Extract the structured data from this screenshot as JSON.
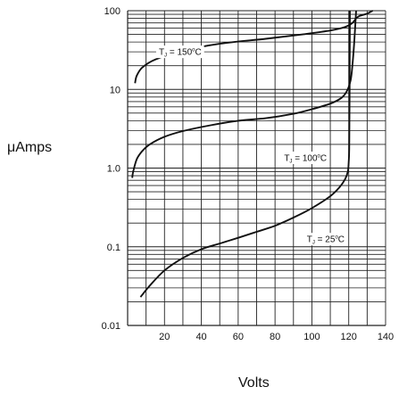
{
  "chart_data": {
    "type": "line",
    "title": "",
    "xlabel": "Volts",
    "ylabel": "μAmps",
    "xlim": [
      0,
      140
    ],
    "ylim": [
      0.01,
      100
    ],
    "y_scale": "log",
    "grid": true,
    "x_ticks": [
      "20",
      "40",
      "60",
      "80",
      "100",
      "120",
      "140"
    ],
    "y_ticks": [
      "0.01",
      "0.1",
      "1.0",
      "10",
      "100"
    ],
    "y_tick_values": [
      0.01,
      0.1,
      1,
      10,
      100
    ],
    "series": [
      {
        "name": "TJ = 150°C",
        "label": {
          "prefix": "T",
          "sub": "J",
          "rest": " = 150",
          "sup": "o",
          "unit": "C",
          "at_x": 28.5,
          "at_y": 30
        },
        "points": [
          [
            4,
            12
          ],
          [
            5,
            15
          ],
          [
            8,
            19
          ],
          [
            15,
            24
          ],
          [
            30,
            31
          ],
          [
            50,
            38
          ],
          [
            75,
            44
          ],
          [
            95,
            50
          ],
          [
            110,
            56
          ],
          [
            118,
            62
          ],
          [
            122,
            70
          ],
          [
            124,
            80
          ],
          [
            126,
            86
          ],
          [
            130,
            92
          ],
          [
            133,
            100
          ]
        ]
      },
      {
        "name": "TJ = 100°C",
        "label": {
          "prefix": "T",
          "sub": "J",
          "rest": " = 100",
          "sup": "o",
          "unit": "C",
          "at_x": 96.5,
          "at_y": 1.35
        },
        "points": [
          [
            2.5,
            0.75
          ],
          [
            3,
            0.9
          ],
          [
            5,
            1.3
          ],
          [
            8,
            1.65
          ],
          [
            12,
            2.0
          ],
          [
            20,
            2.5
          ],
          [
            30,
            2.95
          ],
          [
            45,
            3.5
          ],
          [
            60,
            4.0
          ],
          [
            75,
            4.3
          ],
          [
            90,
            4.9
          ],
          [
            100,
            5.6
          ],
          [
            110,
            6.6
          ],
          [
            116,
            7.8
          ],
          [
            119,
            9.5
          ],
          [
            121,
            13
          ],
          [
            122,
            20
          ],
          [
            123,
            40
          ],
          [
            124,
            100
          ]
        ]
      },
      {
        "name": "TJ = 25°C",
        "label": {
          "prefix": "T",
          "sub": "J",
          "rest": " = 25",
          "sup": "o",
          "unit": "C",
          "at_x": 107.5,
          "at_y": 0.125
        },
        "points": [
          [
            7,
            0.023
          ],
          [
            12,
            0.032
          ],
          [
            20,
            0.05
          ],
          [
            30,
            0.072
          ],
          [
            40,
            0.093
          ],
          [
            50,
            0.11
          ],
          [
            60,
            0.13
          ],
          [
            70,
            0.155
          ],
          [
            80,
            0.185
          ],
          [
            90,
            0.235
          ],
          [
            100,
            0.31
          ],
          [
            110,
            0.44
          ],
          [
            115,
            0.57
          ],
          [
            118,
            0.72
          ],
          [
            119.5,
            0.9
          ],
          [
            120,
            1.2
          ],
          [
            120.3,
            2
          ],
          [
            120.5,
            10
          ],
          [
            120.6,
            100
          ]
        ]
      }
    ]
  }
}
